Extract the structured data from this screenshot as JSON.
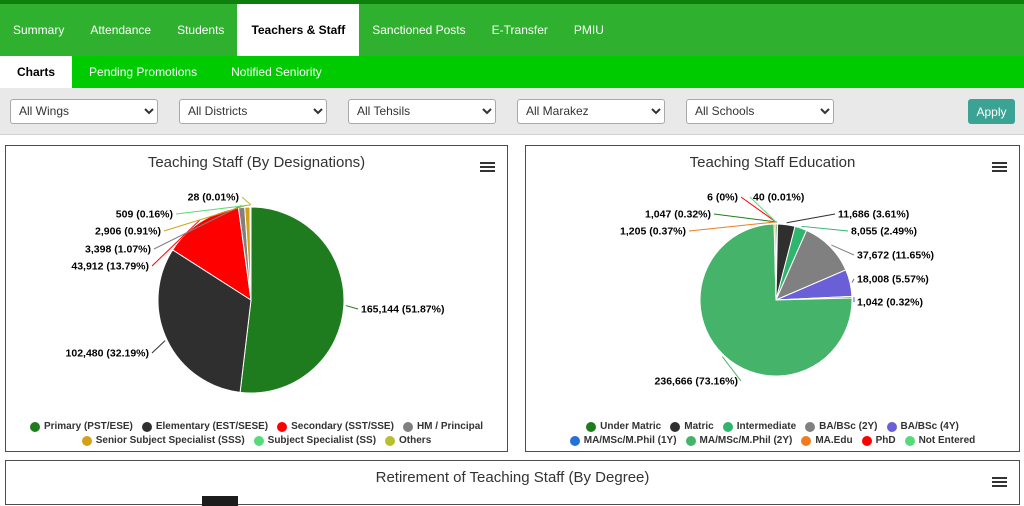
{
  "nav": {
    "items": [
      {
        "label": "Summary",
        "active": false
      },
      {
        "label": "Attendance",
        "active": false
      },
      {
        "label": "Students",
        "active": false
      },
      {
        "label": "Teachers & Staff",
        "active": true
      },
      {
        "label": "Sanctioned Posts",
        "active": false
      },
      {
        "label": "E-Transfer",
        "active": false
      },
      {
        "label": "PMIU",
        "active": false
      }
    ]
  },
  "subnav": {
    "items": [
      {
        "label": "Charts",
        "active": true
      },
      {
        "label": "Pending Promotions",
        "active": false
      },
      {
        "label": "Notified Seniority",
        "active": false
      }
    ]
  },
  "filters": {
    "wings": "All Wings",
    "districts": "All Districts",
    "tehsils": "All Tehsils",
    "marakez": "All Marakez",
    "schools": "All Schools",
    "apply_label": "Apply"
  },
  "colors": {
    "topbar_green": "#2fb02f",
    "subbar_green": "#00cb00",
    "apply_teal": "#3ba394"
  },
  "chart_data": [
    {
      "type": "pie",
      "title": "Teaching Staff (By Designations)",
      "legend_position": "bottom",
      "slices": [
        {
          "name": "Primary (PST/ESE)",
          "value": 165144,
          "pct": 51.87,
          "label": "165,144 (51.87%)",
          "color": "#1e7c1e",
          "label_pos": [
            355,
            136
          ],
          "anchor": "start"
        },
        {
          "name": "Elementary (EST/SESE)",
          "value": 102480,
          "pct": 32.19,
          "label": "102,480 (32.19%)",
          "color": "#2f2f2f",
          "label_pos": [
            143,
            180
          ],
          "anchor": "end"
        },
        {
          "name": "Secondary (SST/SSE)",
          "value": 43912,
          "pct": 13.79,
          "label": "43,912 (13.79%)",
          "color": "#fe0000",
          "label_pos": [
            143,
            93
          ],
          "anchor": "end"
        },
        {
          "name": "HM / Principal",
          "value": 3398,
          "pct": 1.07,
          "label": "3,398 (1.07%)",
          "color": "#808080",
          "label_pos": [
            145,
            76
          ],
          "anchor": "end"
        },
        {
          "name": "Senior Subject Specialist (SSS)",
          "value": 2906,
          "pct": 0.91,
          "label": "2,906 (0.91%)",
          "color": "#d4a017",
          "label_pos": [
            155,
            58
          ],
          "anchor": "end"
        },
        {
          "name": "Subject Specialist (SS)",
          "value": 509,
          "pct": 0.16,
          "label": "509 (0.16%)",
          "color": "#57da7a",
          "label_pos": [
            167,
            41
          ],
          "anchor": "end"
        },
        {
          "name": "Others",
          "value": 28,
          "pct": 0.01,
          "label": "28 (0.01%)",
          "color": "#b8bf2d",
          "label_pos": [
            233,
            24
          ],
          "anchor": "end"
        }
      ]
    },
    {
      "type": "pie",
      "title": "Teaching Staff Education",
      "legend_position": "bottom",
      "slices": [
        {
          "name": "Under Matric",
          "value": 1047,
          "pct": 0.32,
          "label": "1,047 (0.32%)",
          "color": "#1e7c1e",
          "label_pos": [
            185,
            41
          ],
          "anchor": "end"
        },
        {
          "name": "Matric",
          "value": 11686,
          "pct": 3.61,
          "label": "11,686 (3.61%)",
          "color": "#2f2f2f",
          "label_pos": [
            312,
            41
          ],
          "anchor": "start"
        },
        {
          "name": "Intermediate",
          "value": 8055,
          "pct": 2.49,
          "label": "8,055 (2.49%)",
          "color": "#2eb56e",
          "label_pos": [
            325,
            58
          ],
          "anchor": "start"
        },
        {
          "name": "BA/BSc (2Y)",
          "value": 37672,
          "pct": 11.65,
          "label": "37,672 (11.65%)",
          "color": "#808080",
          "label_pos": [
            331,
            82
          ],
          "anchor": "start"
        },
        {
          "name": "BA/BSc (4Y)",
          "value": 18008,
          "pct": 5.57,
          "label": "18,008 (5.57%)",
          "color": "#6a5fd6",
          "label_pos": [
            331,
            106
          ],
          "anchor": "start"
        },
        {
          "name": "MA/MSc/M.Phil (1Y)",
          "value": 1042,
          "pct": 0.32,
          "label": "1,042 (0.32%)",
          "color": "#2670d9",
          "label_pos": [
            331,
            129
          ],
          "anchor": "start"
        },
        {
          "name": "MA/MSc/M.Phil (2Y)",
          "value": 236666,
          "pct": 73.16,
          "label": "236,666 (73.16%)",
          "color": "#45b36a",
          "label_pos": [
            212,
            208
          ],
          "anchor": "end"
        },
        {
          "name": "MA.Edu",
          "value": 1205,
          "pct": 0.37,
          "label": "1,205 (0.37%)",
          "color": "#ed7d20",
          "label_pos": [
            160,
            58
          ],
          "anchor": "end"
        },
        {
          "name": "PhD",
          "value": 6,
          "pct": 0,
          "label": "6 (0%)",
          "color": "#fe0000",
          "label_pos": [
            212,
            24
          ],
          "anchor": "end"
        },
        {
          "name": "Not Entered",
          "value": 40,
          "pct": 0.01,
          "label": "40 (0.01%)",
          "color": "#57da7a",
          "label_pos": [
            227,
            24
          ],
          "anchor": "start"
        }
      ]
    },
    {
      "title": "Retirement of Teaching Staff (By Degree)",
      "partial": true
    }
  ]
}
